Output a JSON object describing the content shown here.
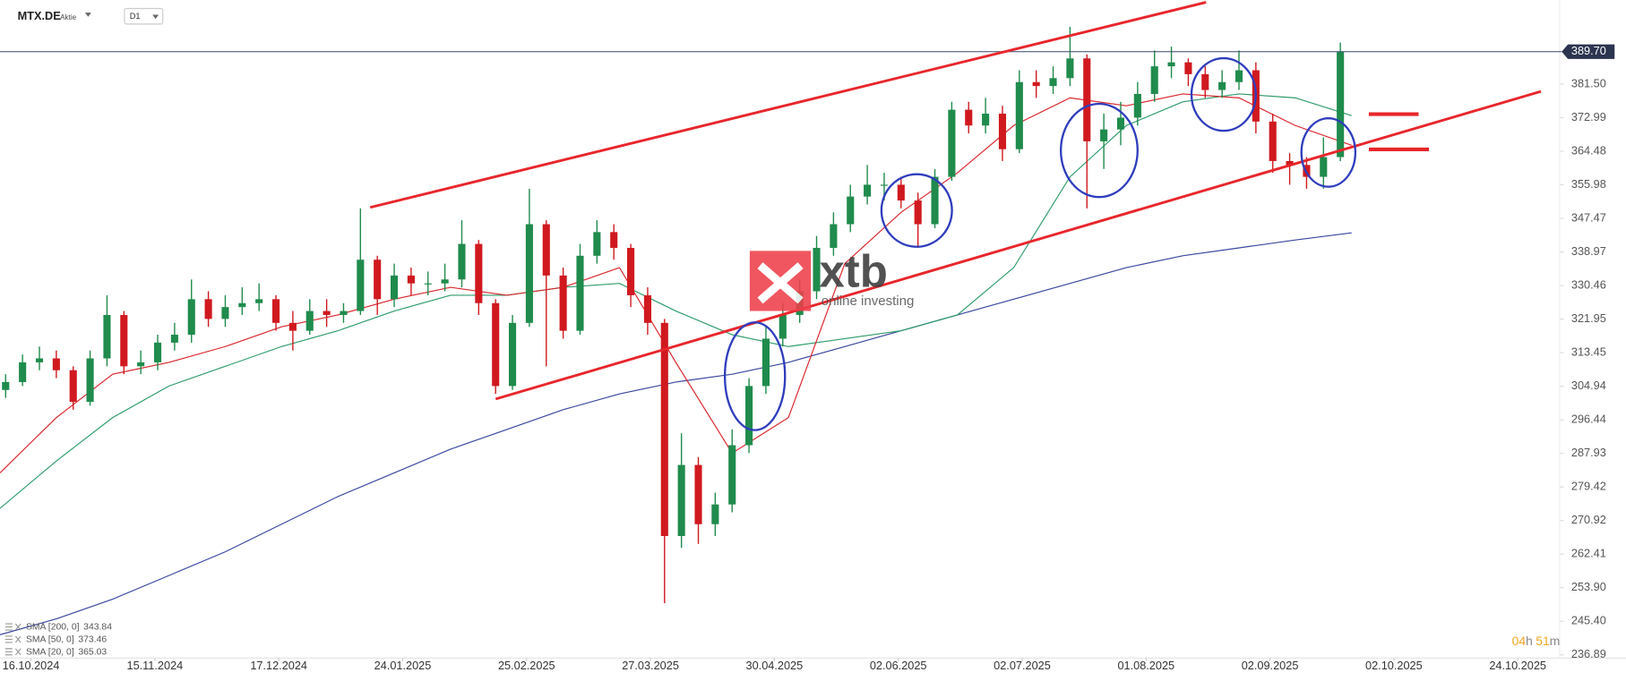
{
  "header": {
    "symbol": "MTX.DE",
    "instrument_type": "Aktie",
    "timeframe": "D1"
  },
  "watermark": {
    "brand": "xtb",
    "tagline": "online investing"
  },
  "countdown": [
    "04",
    "h",
    "51",
    "m"
  ],
  "chart_data": {
    "type": "candlestick",
    "up_color": "#1f8b4c",
    "down_color": "#d0191f",
    "xlim": [
      0,
      276.2
    ],
    "ylim": [
      236.1,
      402.74
    ],
    "xticks": [
      {
        "value": 5.5,
        "label": "16.10.2024"
      },
      {
        "value": 27.5,
        "label": "15.11.2024"
      },
      {
        "value": 49.5,
        "label": "17.12.2024"
      },
      {
        "value": 71.5,
        "label": "24.01.2025"
      },
      {
        "value": 93.5,
        "label": "25.02.2025"
      },
      {
        "value": 115.5,
        "label": "27.03.2025"
      },
      {
        "value": 137.5,
        "label": "30.04.2025"
      },
      {
        "value": 159.5,
        "label": "02.06.2025"
      },
      {
        "value": 181.5,
        "label": "02.07.2025"
      },
      {
        "value": 203.5,
        "label": "01.08.2025"
      },
      {
        "value": 225.5,
        "label": "02.09.2025"
      },
      {
        "value": 247.5,
        "label": "02.10.2025"
      },
      {
        "value": 269.5,
        "label": "24.10.2025"
      }
    ],
    "yticks": [
      {
        "value": 381.5,
        "label": "381.50"
      },
      372.99,
      364.48,
      355.98,
      347.47,
      338.97,
      330.46,
      321.95,
      313.45,
      304.94,
      296.44,
      287.93,
      279.42,
      270.92,
      262.41,
      {
        "value": 253.9,
        "label": "253.90"
      },
      {
        "value": 245.4,
        "label": "245.40"
      },
      236.89
    ],
    "last_price": {
      "value": 389.7,
      "label": "389.70"
    },
    "candles": {
      "x": [
        1,
        4,
        7,
        10,
        13,
        16,
        19,
        22,
        25,
        28,
        31,
        34,
        37,
        40,
        43,
        46,
        49,
        52,
        55,
        58,
        61,
        64,
        67,
        70,
        73,
        76,
        79,
        82,
        85,
        88,
        91,
        94,
        97,
        100,
        103,
        106,
        109,
        112,
        115,
        118,
        121,
        124,
        127,
        130,
        133,
        136,
        139,
        142,
        145,
        148,
        151,
        154,
        157,
        160,
        163,
        166,
        169,
        172,
        175,
        178,
        181,
        184,
        187,
        190,
        193,
        196,
        199,
        202,
        205,
        208,
        211,
        214,
        217,
        220,
        223,
        226,
        229,
        232,
        235,
        238
      ],
      "open": [
        304,
        306,
        311,
        312,
        309,
        301,
        312,
        323,
        310,
        311,
        316,
        318,
        327,
        322,
        325,
        326,
        327,
        321,
        319,
        324,
        323,
        324,
        337,
        327,
        333,
        331,
        331,
        332,
        341,
        326,
        305,
        321,
        346,
        333,
        319,
        338,
        344,
        340,
        328,
        321,
        267,
        285,
        270,
        275,
        290,
        305,
        317,
        323,
        329,
        340,
        346,
        353,
        356,
        356,
        352,
        346,
        358,
        375,
        371,
        374,
        365,
        382,
        381,
        383,
        388,
        367,
        370,
        373,
        379,
        386,
        387,
        384,
        380,
        382,
        385,
        372,
        362,
        361,
        358,
        363
      ],
      "high": [
        308,
        313,
        315,
        314,
        310,
        314,
        328,
        324,
        314,
        318,
        321,
        332,
        329,
        328,
        330,
        331,
        328,
        324,
        327,
        327,
        326,
        350,
        338,
        336,
        335,
        334,
        336,
        347,
        342,
        327,
        323,
        355,
        347,
        335,
        341,
        347,
        346,
        341,
        330,
        322,
        293,
        287,
        278,
        294,
        307,
        320,
        326,
        332,
        343,
        349,
        356,
        361,
        359,
        358,
        354,
        360,
        377,
        377,
        378,
        376,
        385,
        385,
        386,
        396,
        389,
        374,
        377,
        382,
        390,
        391,
        388,
        386,
        385,
        390,
        387,
        374,
        364,
        363,
        368,
        392
      ],
      "low": [
        302,
        305,
        309,
        307,
        299,
        300,
        310,
        308,
        308,
        309,
        314,
        316,
        320,
        320,
        323,
        324,
        319,
        314,
        318,
        320,
        321,
        323,
        323,
        325,
        328,
        328,
        329,
        330,
        323,
        303,
        304,
        320,
        310,
        317,
        318,
        336,
        337,
        325,
        318,
        250,
        264,
        265,
        267,
        273,
        288,
        303,
        315,
        321,
        327,
        338,
        344,
        351,
        352,
        350,
        340,
        345,
        357,
        369,
        369,
        362,
        364,
        378,
        379,
        381,
        350,
        360,
        366,
        371,
        377,
        383,
        381,
        378,
        378,
        380,
        369,
        359,
        356,
        355,
        355,
        362
      ],
      "close": [
        306,
        311,
        312,
        309,
        301,
        312,
        323,
        310,
        311,
        316,
        318,
        327,
        322,
        325,
        326,
        327,
        321,
        319,
        324,
        323,
        324,
        337,
        327,
        333,
        331,
        331,
        332,
        341,
        326,
        305,
        321,
        346,
        333,
        319,
        338,
        344,
        340,
        328,
        321,
        267,
        285,
        270,
        275,
        290,
        305,
        317,
        323,
        329,
        340,
        346,
        353,
        356,
        356,
        352,
        346,
        358,
        375,
        371,
        374,
        365,
        382,
        381,
        383,
        388,
        367,
        370,
        373,
        379,
        386,
        387,
        384,
        380,
        382,
        385,
        372,
        362,
        361,
        358,
        363,
        389.7
      ]
    },
    "sma_x": [
      0,
      10,
      20,
      30,
      40,
      50,
      60,
      70,
      80,
      90,
      100,
      110,
      120,
      130,
      140,
      150,
      160,
      170,
      180,
      190,
      200,
      210,
      220,
      230,
      240
    ],
    "series": [
      {
        "name": "SMA [200, 0]",
        "legend_value": 343.84,
        "color": "#3a47a0",
        "values": [
          242,
          246,
          251,
          257,
          263,
          270,
          277,
          283,
          289,
          294,
          299,
          303,
          306,
          308,
          311,
          315,
          319,
          323,
          327,
          331,
          335,
          338,
          340,
          342,
          343.8
        ]
      },
      {
        "name": "SMA [50, 0]",
        "legend_value": 373.46,
        "color": "#2e9b6a",
        "values": [
          274,
          286,
          297,
          305,
          310,
          315,
          319,
          324,
          328,
          328,
          330,
          331,
          324,
          318,
          315,
          317,
          319,
          323,
          335,
          358,
          371,
          377,
          379,
          378,
          373.5
        ]
      },
      {
        "name": "SMA [20, 0]",
        "legend_value": 365.03,
        "color": "#d9252b",
        "values": [
          283,
          297,
          308,
          311,
          315,
          320,
          323,
          327,
          330,
          328,
          330,
          335,
          311,
          288,
          297,
          336,
          349,
          359,
          371,
          378,
          376,
          379,
          378,
          371,
          366
        ]
      }
    ]
  }
}
